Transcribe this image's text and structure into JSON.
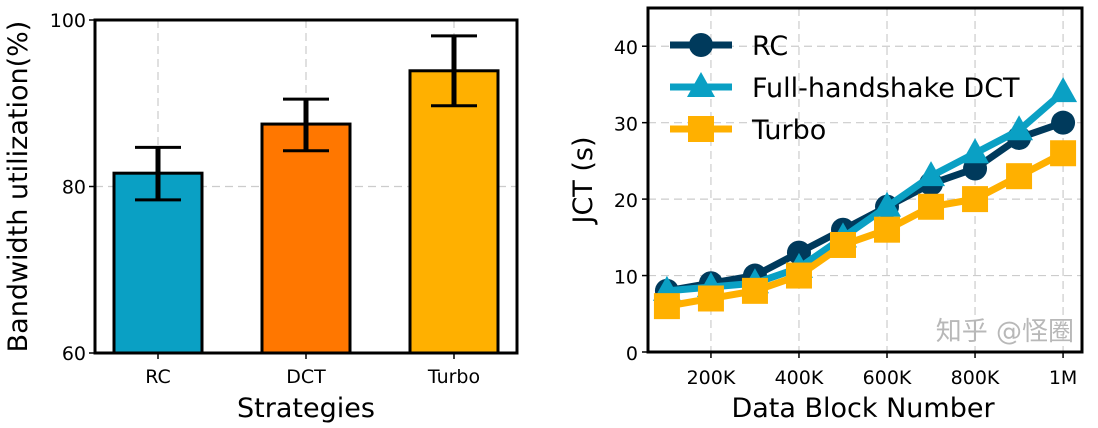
{
  "chart_data": [
    {
      "type": "bar",
      "categories": [
        "RC",
        "DCT",
        "Turbo"
      ],
      "values": [
        81.6,
        87.5,
        93.9
      ],
      "error_low": [
        78.4,
        84.3,
        89.7
      ],
      "error_high": [
        84.7,
        90.5,
        98.1
      ],
      "colors": [
        "#0aa0c4",
        "#ff7700",
        "#ffb000"
      ],
      "xlabel": "Strategies",
      "ylabel": "Bandwidth utilization(%)",
      "ylim": [
        60,
        100
      ],
      "yticks": [
        60,
        80,
        100
      ],
      "grid": true
    },
    {
      "type": "line",
      "x": [
        100000,
        200000,
        300000,
        400000,
        500000,
        600000,
        700000,
        800000,
        900000,
        1000000
      ],
      "series": [
        {
          "name": "RC",
          "values": [
            8,
            9,
            10,
            13,
            16,
            19,
            22,
            24,
            28,
            30
          ],
          "color": "#003a5c",
          "marker": "circle"
        },
        {
          "name": "Full-handshake DCT",
          "values": [
            8,
            8.5,
            9,
            11,
            15,
            19,
            23,
            26,
            29,
            34
          ],
          "color": "#0aa0c4",
          "marker": "triangle"
        },
        {
          "name": "Turbo",
          "values": [
            6,
            7,
            8,
            10,
            14,
            16,
            19,
            20,
            23,
            26
          ],
          "color": "#ffb000",
          "marker": "square"
        }
      ],
      "xlabel": "Data Block Number",
      "ylabel": "JCT (s)",
      "xticks": [
        200000,
        400000,
        600000,
        800000,
        1000000
      ],
      "xtick_labels": [
        "200K",
        "400K",
        "600K",
        "800K",
        "1M"
      ],
      "yticks": [
        0,
        10,
        20,
        30,
        40
      ],
      "xlim": [
        57000,
        1043000
      ],
      "ylim": [
        0,
        45
      ],
      "grid": true,
      "legend": "top-left"
    }
  ],
  "watermark": "知乎 @怪圈"
}
